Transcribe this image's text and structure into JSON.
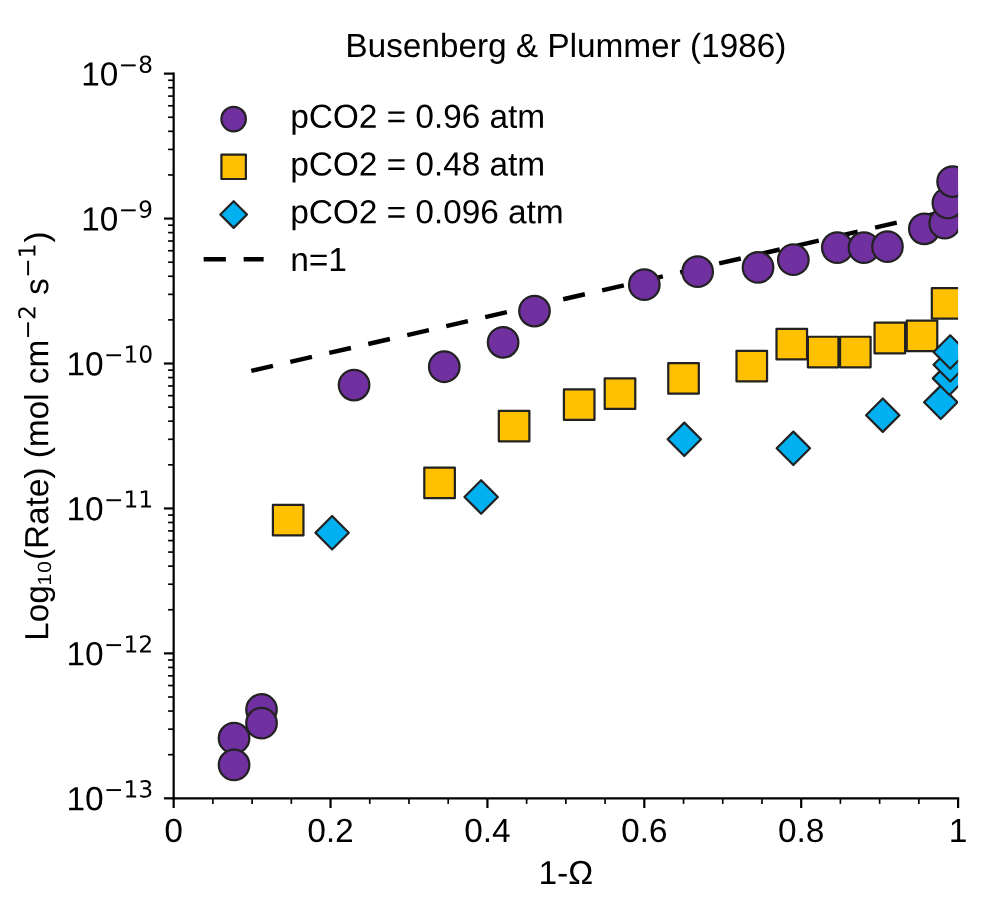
{
  "chart_data": {
    "type": "scatter",
    "title": "Busenberg & Plummer (1986)",
    "xlabel": "1-Ω",
    "ylabel": "Log₁₀(Rate) (mol cm$^{−2}$ s$^{−1}$)",
    "log": "y",
    "xlim": [
      0,
      1.0
    ],
    "xticks": [
      0,
      0.2,
      0.4,
      0.6,
      0.8,
      1
    ],
    "ylim": [
      1e-13,
      1e-08
    ],
    "yticks": [
      {
        "value": 1e-13,
        "label": "10$^{−13}$"
      },
      {
        "value": 1e-12,
        "label": "10$^{−12}$"
      },
      {
        "value": 1e-11,
        "label": "10$^{−11}$"
      },
      {
        "value": 1e-10,
        "label": "10$^{−10}$"
      },
      {
        "value": 1e-09,
        "label": "10$^{−9}$"
      },
      {
        "value": 1e-08,
        "label": "10$^{−8}$"
      }
    ],
    "grid": false,
    "legend": "top left",
    "series": [
      {
        "name": "pCO2 = 0.96 atm",
        "color": "#7030a0",
        "marker": "circle",
        "x": [
          0.077,
          0.077,
          0.112,
          0.112,
          0.23,
          0.345,
          0.42,
          0.46,
          0.6,
          0.668,
          0.745,
          0.79,
          0.846,
          0.88,
          0.91,
          0.957,
          0.983,
          0.987,
          0.99,
          0.993
        ],
        "values": [
          2.6e-13,
          1.7e-13,
          4.1e-13,
          3.3e-13,
          7.1e-11,
          9.5e-11,
          1.4e-10,
          2.3e-10,
          3.5e-10,
          4.3e-10,
          4.6e-10,
          5.2e-10,
          6.3e-10,
          6.3e-10,
          6.4e-10,
          8.5e-10,
          9.3e-10,
          1.28e-09,
          null,
          1.8e-09
        ]
      },
      {
        "name": "pCO2 = 0.48 atm",
        "color": "#ffc000",
        "marker": "square",
        "x": [
          0.146,
          0.339,
          0.434,
          0.517,
          0.569,
          0.65,
          0.737,
          0.788,
          0.828,
          0.869,
          0.913,
          0.954,
          0.979,
          0.986
        ],
        "values": [
          8.3e-12,
          1.5e-11,
          3.7e-11,
          5.2e-11,
          6.2e-11,
          7.9e-11,
          9.6e-11,
          1.36e-10,
          1.2e-10,
          1.2e-10,
          1.5e-10,
          1.55e-10,
          null,
          2.6e-10
        ]
      },
      {
        "name": "pCO2 = 0.096 atm",
        "color": "#00b0f0",
        "marker": "diamond",
        "x": [
          0.202,
          0.392,
          0.651,
          0.79,
          0.904,
          0.978,
          0.989,
          0.99,
          0.99
        ],
        "values": [
          6.8e-12,
          1.2e-11,
          3e-11,
          2.6e-11,
          4.4e-11,
          5.4e-11,
          7.9e-11,
          9.8e-11,
          1.2e-10
        ]
      },
      {
        "name": "n=1",
        "type": "line",
        "color": "#000000",
        "line_style": "dashed",
        "marker": "none",
        "x": [
          0.099,
          0.978
        ],
        "values": [
          8.9e-11,
          1.1e-09
        ]
      }
    ]
  }
}
